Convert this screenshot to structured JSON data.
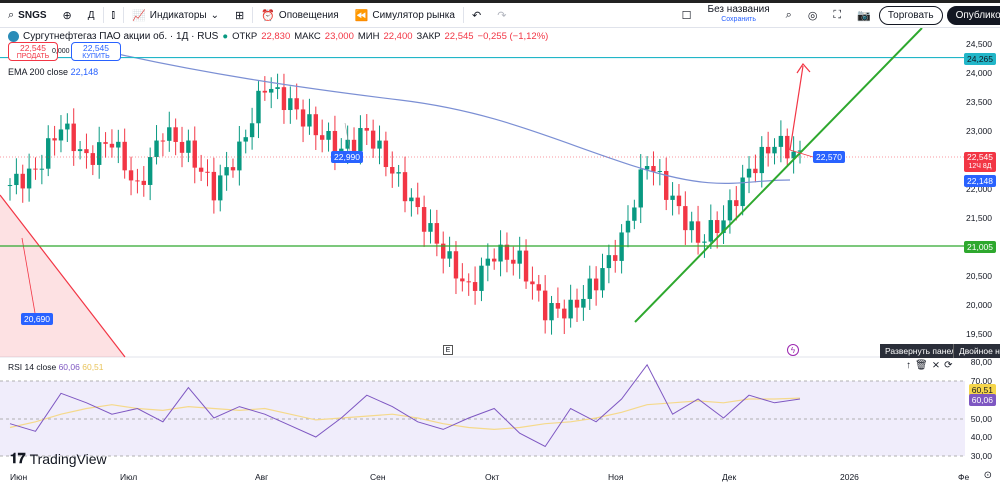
{
  "toolbar": {
    "symbol": "SNGS",
    "interval": "Д",
    "indicators": "Индикаторы",
    "alerts": "Оповещения",
    "replay": "Симулятор рынка",
    "layout_name": "Без названия",
    "layout_save": "Сохранить",
    "trade": "Торговать",
    "publish": "Опубликовать"
  },
  "legend": {
    "title": "Сургутнефтегаз ПАО акции об. · 1Д · RUS",
    "open_label": "ОТКР",
    "open": "22,830",
    "high_label": "МАКС",
    "high": "23,000",
    "low_label": "МИН",
    "low": "22,400",
    "close_label": "ЗАКР",
    "close": "22,545",
    "change": "−0,255 (−1,12%)",
    "sell_price": "22,545",
    "sell_label": "ПРОДАТЬ",
    "spread": "0,000",
    "buy_price": "22,545",
    "buy_label": "КУПИТЬ",
    "ema": "EMA 200 close",
    "ema_value": "22,148"
  },
  "price_axis": [
    "24,500",
    "24,000",
    "23,500",
    "23,000",
    "22,000",
    "21,500",
    "20,500",
    "20,000",
    "19,500"
  ],
  "tags": {
    "cyan": "24,265",
    "last": "22,545",
    "last_sub": "12Ч 8Д",
    "ema": "22,148",
    "green": "21,005",
    "label1": "20,690",
    "label2": "22,990",
    "label3": "22,570"
  },
  "colors": {
    "up": "#089981",
    "down": "#f23645",
    "ema": "#7b8fd4",
    "trend": "#2ea82e",
    "level": "#22b6c8",
    "rsi": "#7e57c2",
    "rsi_ma": "#f5d98b"
  },
  "rsi": {
    "label": "RSI 14 close",
    "value": "60,06",
    "ma": "60,51",
    "axis": [
      "80,00",
      "70,00",
      "50,00",
      "40,00",
      "30,00"
    ]
  },
  "tooltip": {
    "expand": "Развернуть панель",
    "double": "Двойное нажатие"
  },
  "dates": [
    "Июн",
    "Июл",
    "Авг",
    "Сен",
    "Окт",
    "Ноя",
    "Дек",
    "2026",
    "Фе"
  ],
  "brand": "TradingView",
  "chart_data": {
    "type": "candlestick",
    "closes": [
      22.06,
      22.3,
      23.1,
      22.5,
      22.85,
      21.97,
      23.0,
      22.65,
      21.97,
      22.65,
      23.8,
      23.45,
      23.0,
      22.65,
      23.0,
      22.3,
      21.6,
      20.9,
      20.24,
      20.9,
      20.75,
      19.9,
      19.9,
      20.4,
      21.1,
      22.5,
      21.8,
      21.1,
      21.45,
      22.3,
      22.8,
      22.545
    ],
    "rsi": [
      47,
      43,
      63,
      58,
      52,
      55,
      48,
      66,
      50,
      56,
      52,
      46,
      40,
      50,
      62,
      56,
      48,
      44,
      50,
      55,
      42,
      35,
      55,
      48,
      60,
      78,
      52,
      60,
      50,
      62,
      58,
      60
    ],
    "rsi_ma": [
      45,
      48,
      52,
      55,
      57,
      55,
      54,
      56,
      55,
      54,
      55,
      52,
      49,
      50,
      51,
      52,
      50,
      47,
      45,
      44,
      45,
      47,
      48,
      50,
      53,
      57,
      58,
      59,
      58,
      60,
      60,
      60.5
    ]
  }
}
